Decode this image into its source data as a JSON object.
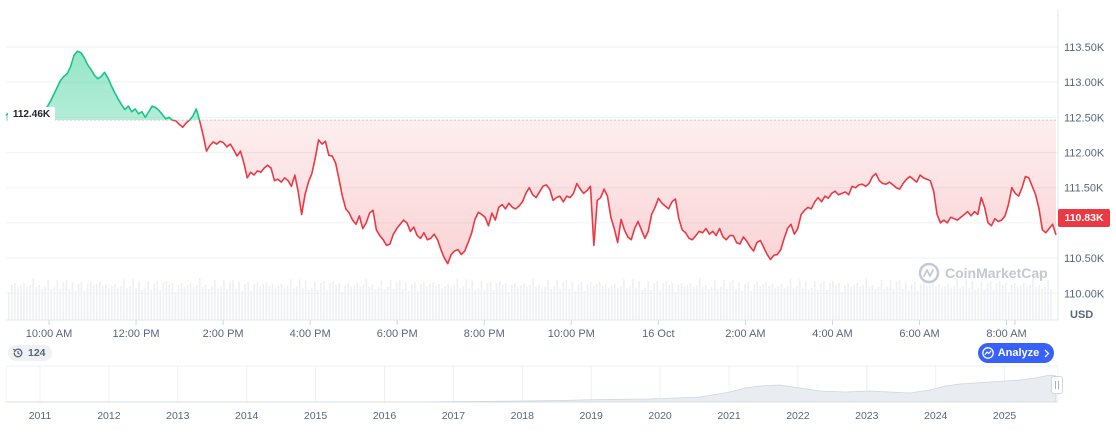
{
  "chart_data": {
    "type": "area",
    "title": "",
    "currency_label": "USD",
    "reference_price": 112.46,
    "reference_label": "112.46K",
    "last_price": 110.83,
    "last_label": "110.83K",
    "ylim": [
      109.62,
      114.04
    ],
    "y_ticks": [
      {
        "value": 113.5,
        "label": "113.50K"
      },
      {
        "value": 113.0,
        "label": "113.00K"
      },
      {
        "value": 112.5,
        "label": "112.50K"
      },
      {
        "value": 112.0,
        "label": "112.00K"
      },
      {
        "value": 111.5,
        "label": "111.50K"
      },
      {
        "value": 111.0,
        "label": "111.00K"
      },
      {
        "value": 110.5,
        "label": "110.50K"
      },
      {
        "value": 110.0,
        "label": "110.00K"
      }
    ],
    "x_ticks": [
      "10:00 AM",
      "12:00 PM",
      "2:00 PM",
      "4:00 PM",
      "6:00 PM",
      "8:00 PM",
      "10:00 PM",
      "16 Oct",
      "2:00 AM",
      "4:00 AM",
      "6:00 AM",
      "8:00 AM"
    ],
    "series": [
      {
        "values": [
          112.53,
          112.57,
          112.54,
          112.55,
          112.52,
          112.54,
          112.58,
          112.55,
          112.56,
          112.59,
          112.57,
          112.61,
          112.64,
          112.72,
          112.82,
          112.92,
          113.02,
          113.08,
          113.12,
          113.22,
          113.38,
          113.44,
          113.42,
          113.35,
          113.25,
          113.18,
          113.1,
          113.05,
          113.08,
          113.14,
          113.06,
          112.95,
          112.85,
          112.76,
          112.68,
          112.61,
          112.66,
          112.58,
          112.62,
          112.55,
          112.58,
          112.5,
          112.58,
          112.66,
          112.64,
          112.6,
          112.54,
          112.48,
          112.5,
          112.46,
          112.45,
          112.4,
          112.36,
          112.42,
          112.46,
          112.52,
          112.62,
          112.45,
          112.25,
          112.02,
          112.1,
          112.15,
          112.12,
          112.16,
          112.14,
          112.08,
          112.12,
          112.04,
          111.95,
          112.02,
          111.85,
          111.64,
          111.72,
          111.68,
          111.74,
          111.72,
          111.78,
          111.82,
          111.78,
          111.6,
          111.62,
          111.58,
          111.64,
          111.6,
          111.52,
          111.68,
          111.44,
          111.12,
          111.4,
          111.58,
          111.7,
          111.92,
          112.18,
          112.12,
          112.16,
          111.96,
          111.95,
          111.85,
          111.62,
          111.38,
          111.2,
          111.14,
          111.04,
          110.98,
          111.1,
          110.92,
          111.0,
          111.14,
          111.18,
          110.9,
          110.82,
          110.76,
          110.68,
          110.7,
          110.84,
          110.92,
          110.98,
          111.04,
          111.0,
          110.88,
          110.94,
          110.82,
          110.78,
          110.86,
          110.76,
          110.78,
          110.84,
          110.76,
          110.62,
          110.5,
          110.42,
          110.55,
          110.6,
          110.62,
          110.55,
          110.6,
          110.72,
          110.85,
          111.05,
          111.15,
          111.12,
          111.08,
          110.96,
          111.14,
          111.04,
          111.22,
          111.26,
          111.2,
          111.28,
          111.22,
          111.2,
          111.24,
          111.3,
          111.42,
          111.5,
          111.4,
          111.36,
          111.44,
          111.52,
          111.54,
          111.48,
          111.32,
          111.36,
          111.38,
          111.3,
          111.38,
          111.36,
          111.42,
          111.56,
          111.48,
          111.42,
          111.46,
          111.52,
          110.68,
          111.32,
          111.36,
          111.48,
          111.38,
          111.08,
          110.92,
          110.72,
          111.05,
          110.9,
          110.8,
          110.76,
          110.92,
          111.02,
          110.9,
          110.78,
          110.88,
          111.12,
          111.22,
          111.35,
          111.28,
          111.24,
          111.2,
          111.3,
          111.34,
          111.06,
          110.9,
          110.86,
          110.78,
          110.76,
          110.82,
          110.88,
          110.86,
          110.92,
          110.84,
          110.88,
          110.82,
          110.92,
          110.8,
          110.76,
          110.82,
          110.82,
          110.72,
          110.7,
          110.8,
          110.74,
          110.66,
          110.6,
          110.72,
          110.75,
          110.65,
          110.55,
          110.48,
          110.54,
          110.55,
          110.62,
          110.78,
          110.92,
          110.98,
          110.84,
          110.92,
          111.12,
          111.18,
          111.22,
          111.2,
          111.3,
          111.36,
          111.3,
          111.38,
          111.35,
          111.42,
          111.45,
          111.4,
          111.42,
          111.44,
          111.4,
          111.52,
          111.5,
          111.54,
          111.55,
          111.52,
          111.56,
          111.66,
          111.7,
          111.6,
          111.56,
          111.55,
          111.58,
          111.54,
          111.5,
          111.48,
          111.56,
          111.62,
          111.66,
          111.62,
          111.58,
          111.68,
          111.64,
          111.62,
          111.6,
          111.45,
          111.12,
          111.0,
          111.04,
          111.0,
          111.08,
          111.06,
          111.04,
          111.08,
          111.12,
          111.16,
          111.1,
          111.16,
          111.12,
          111.36,
          111.22,
          111.0,
          110.96,
          111.06,
          111.02,
          111.04,
          111.1,
          111.26,
          111.5,
          111.42,
          111.38,
          111.5,
          111.66,
          111.64,
          111.52,
          111.4,
          111.2,
          110.9,
          110.86,
          110.92,
          110.98,
          110.83
        ]
      }
    ],
    "navigator": {
      "years": [
        "2011",
        "2012",
        "2013",
        "2014",
        "2015",
        "2016",
        "2017",
        "2018",
        "2019",
        "2020",
        "2021",
        "2022",
        "2023",
        "2024",
        "2025"
      ]
    },
    "colors": {
      "up": "#16c784",
      "down": "#ea3943",
      "reference_line": "#c9ced6",
      "grid": "#f0f2f5"
    }
  },
  "watermark": "CoinMarketCap",
  "history": {
    "count": "124",
    "icon": "history-icon"
  },
  "analyze": {
    "label": "Analyze",
    "icon": "analyze-icon"
  }
}
